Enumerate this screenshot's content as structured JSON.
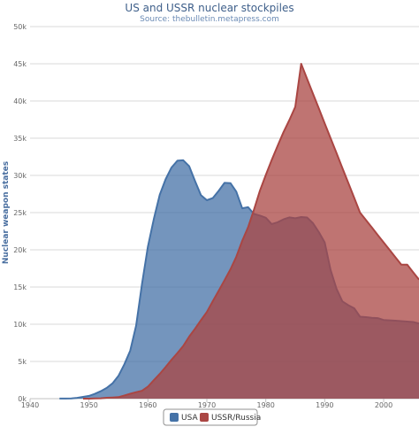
{
  "chart_data": {
    "type": "area",
    "title": "US and USSR nuclear stockpiles",
    "subtitle": "Source: thebulletin.metapress.com",
    "xlabel": "",
    "ylabel": "Nuclear weapon states",
    "xlim": [
      1940,
      2006
    ],
    "ylim": [
      0,
      50000
    ],
    "x_ticks": [
      1940,
      1950,
      1960,
      1970,
      1980,
      1990,
      2000
    ],
    "y_ticks": [
      0,
      5000,
      10000,
      15000,
      20000,
      25000,
      30000,
      35000,
      40000,
      45000,
      50000
    ],
    "y_tick_labels": [
      "0k",
      "5k",
      "10k",
      "15k",
      "20k",
      "25k",
      "30k",
      "35k",
      "40k",
      "45k",
      "50k"
    ],
    "grid": true,
    "legend_position": "bottom-center",
    "series": [
      {
        "name": "USA",
        "color": "#4572a7",
        "x": [
          1945,
          1946,
          1947,
          1948,
          1949,
          1950,
          1951,
          1952,
          1953,
          1954,
          1955,
          1956,
          1957,
          1958,
          1959,
          1960,
          1961,
          1962,
          1963,
          1964,
          1965,
          1966,
          1967,
          1968,
          1969,
          1970,
          1971,
          1972,
          1973,
          1974,
          1975,
          1976,
          1977,
          1978,
          1979,
          1980,
          1981,
          1982,
          1983,
          1984,
          1985,
          1986,
          1987,
          1988,
          1989,
          1990,
          1991,
          1992,
          1993,
          1994,
          1995,
          1996,
          1997,
          1998,
          1999,
          2000,
          2001,
          2002,
          2003,
          2004,
          2005,
          2006
        ],
        "values": [
          6,
          11,
          32,
          110,
          235,
          369,
          640,
          1005,
          1436,
          2063,
          3057,
          4618,
          6444,
          9822,
          15468,
          20434,
          24126,
          27387,
          29459,
          31056,
          31982,
          32040,
          31233,
          29224,
          27342,
          26662,
          26956,
          27912,
          28999,
          28965,
          27826,
          25579,
          25722,
          24826,
          24605,
          24304,
          23464,
          23708,
          24099,
          24357,
          24237,
          24401,
          24344,
          23586,
          22380,
          21004,
          17287,
          14747,
          13076,
          12555,
          12144,
          11009,
          10953,
          10871,
          10824,
          10577,
          10527,
          10475,
          10421,
          10358,
          10295,
          10104
        ]
      },
      {
        "name": "USSR/Russia",
        "color": "#aa4643",
        "x": [
          1949,
          1950,
          1951,
          1952,
          1953,
          1954,
          1955,
          1956,
          1957,
          1958,
          1959,
          1960,
          1961,
          1962,
          1963,
          1964,
          1965,
          1966,
          1967,
          1968,
          1969,
          1970,
          1971,
          1972,
          1973,
          1974,
          1975,
          1976,
          1977,
          1978,
          1979,
          1980,
          1981,
          1982,
          1983,
          1984,
          1985,
          1986,
          1987,
          1988,
          1989,
          1990,
          1991,
          1992,
          1993,
          1994,
          1995,
          1996,
          1997,
          1998,
          1999,
          2000,
          2001,
          2002,
          2003,
          2004,
          2005,
          2006
        ],
        "values": [
          1,
          5,
          25,
          50,
          120,
          150,
          200,
          426,
          660,
          869,
          1060,
          1605,
          2471,
          3322,
          4238,
          5221,
          6129,
          7089,
          8339,
          9399,
          10538,
          11643,
          13092,
          14478,
          15915,
          17385,
          19055,
          21205,
          23044,
          25393,
          27935,
          30062,
          32049,
          33952,
          35804,
          37431,
          39197,
          45000,
          43000,
          41000,
          39000,
          37000,
          35000,
          33000,
          31000,
          29000,
          27000,
          25000,
          24000,
          23000,
          22000,
          21000,
          20000,
          19000,
          18000,
          18000,
          17000,
          16000
        ]
      }
    ]
  }
}
